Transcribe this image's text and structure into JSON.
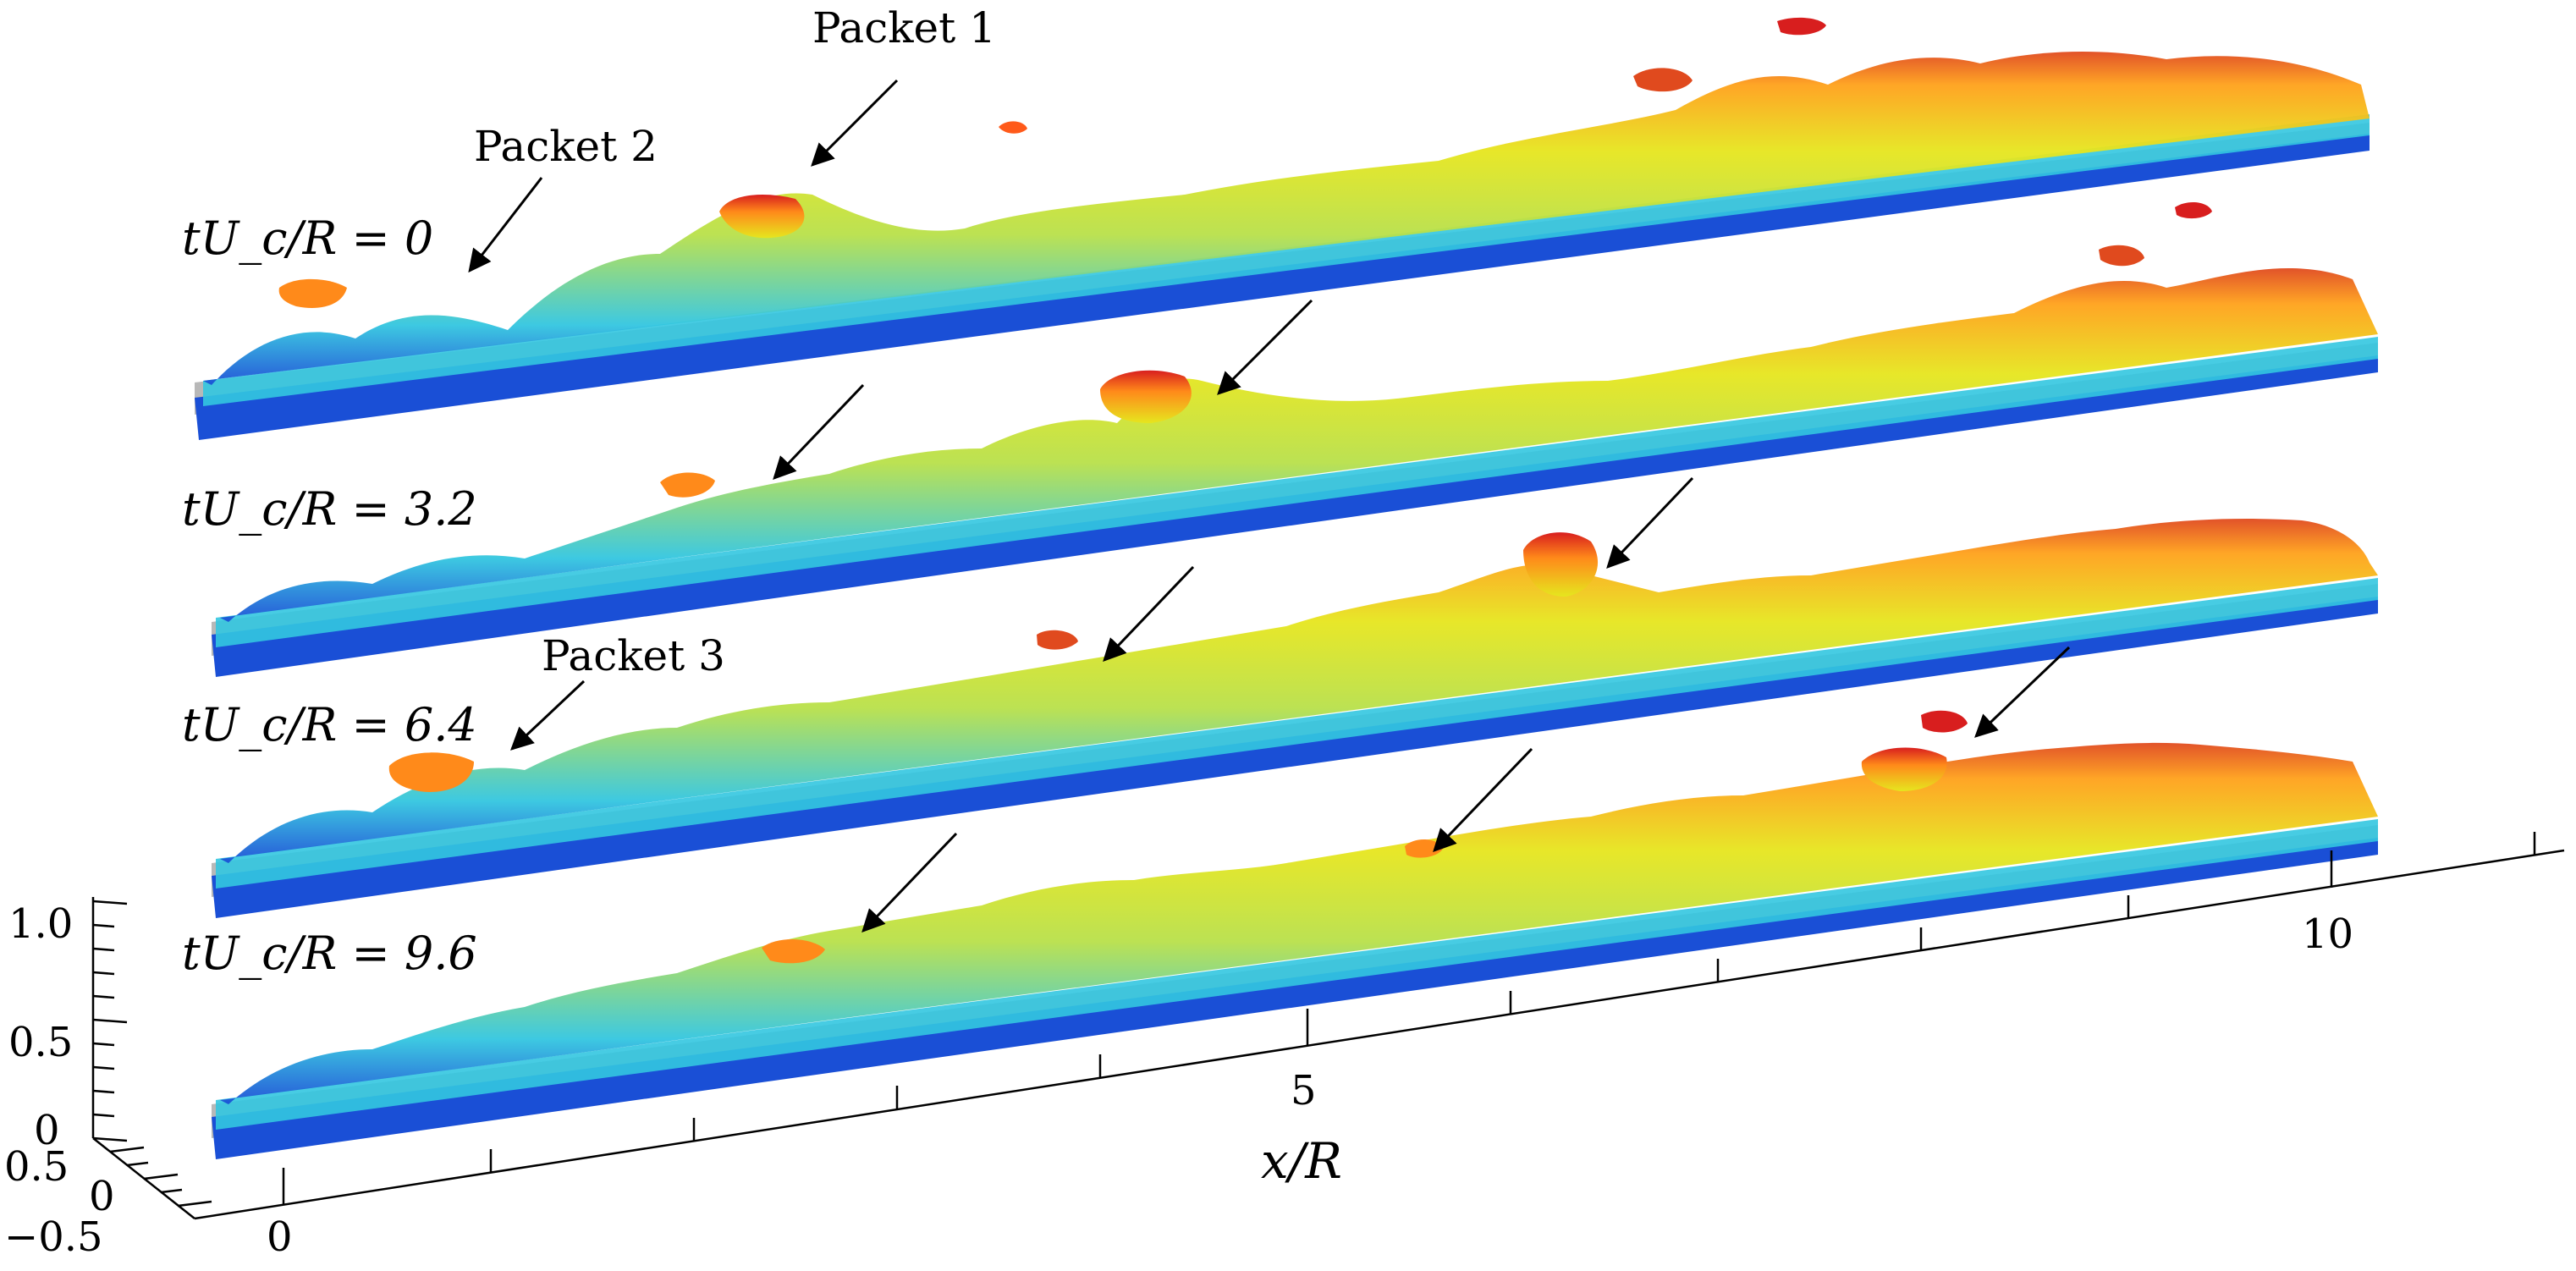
{
  "figure": {
    "time_labels": [
      "tU_c/R = 0",
      "tU_c/R = 3.2",
      "tU_c/R = 6.4",
      "tU_c/R = 9.6"
    ],
    "packet_labels": [
      "Packet 1",
      "Packet 2",
      "Packet 3"
    ],
    "x_axis": {
      "title": "x/R",
      "ticks": [
        "0",
        "5",
        "10"
      ]
    },
    "y_axis": {
      "ticks": [
        "1.0",
        "0.5",
        "0"
      ]
    },
    "z_axis": {
      "ticks": [
        "0.5",
        "0",
        "−0.5"
      ]
    }
  },
  "colors": {
    "wall": "#b8b8b8",
    "near_wall": "#1a4fd6",
    "low": "#33c6e0",
    "mid": "#e6e61e",
    "high": "#ff8a1a",
    "peak": "#d81e1e"
  }
}
